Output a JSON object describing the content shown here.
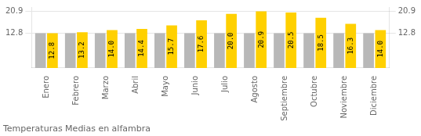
{
  "chart_data": {
    "type": "bar",
    "title": "Temperaturas Medias en alfambra",
    "categories": [
      "Enero",
      "Febrero",
      "Marzo",
      "Abril",
      "Mayo",
      "Junio",
      "Julio",
      "Agosto",
      "Septiembre",
      "Octubre",
      "Noviembre",
      "Diciembre"
    ],
    "series": [
      {
        "color": "#B8B8B8",
        "values": [
          12.8,
          12.8,
          12.8,
          12.8,
          12.8,
          12.8,
          12.8,
          12.8,
          12.8,
          12.8,
          12.8,
          12.8
        ]
      },
      {
        "color": "#FFD000",
        "values": [
          12.8,
          13.2,
          14.0,
          14.4,
          15.7,
          17.6,
          20.0,
          20.9,
          20.5,
          18.5,
          16.3,
          14.0
        ],
        "value_labels": [
          "12.8",
          "13.2",
          "14.0",
          "14.4",
          "15.7",
          "17.6",
          "20.0",
          "20.9",
          "20.5",
          "18.5",
          "16.3",
          "14.0"
        ],
        "data_labels": true
      }
    ],
    "ylim": [
      0,
      22.5
    ],
    "yticks": [
      12.8,
      20.9
    ],
    "y2lim": [
      0,
      22.5
    ],
    "y2ticks": [
      12.8,
      20.9
    ],
    "grid": true
  }
}
